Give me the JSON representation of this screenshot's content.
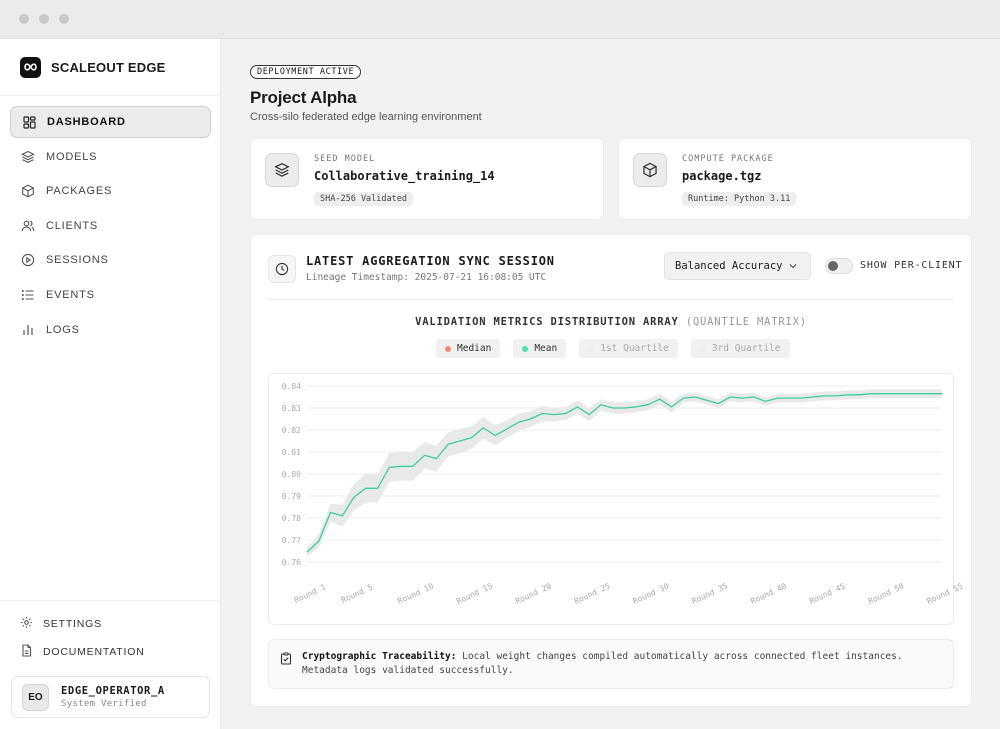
{
  "brand": {
    "name": "SCALEOUT EDGE"
  },
  "nav": [
    {
      "label": "DASHBOARD",
      "icon": "grid-icon",
      "active": true
    },
    {
      "label": "MODELS",
      "icon": "layers-icon"
    },
    {
      "label": "PACKAGES",
      "icon": "box-icon"
    },
    {
      "label": "CLIENTS",
      "icon": "users-icon"
    },
    {
      "label": "SESSIONS",
      "icon": "play-circle-icon"
    },
    {
      "label": "EVENTS",
      "icon": "list-icon"
    },
    {
      "label": "LOGS",
      "icon": "bar-chart-icon"
    }
  ],
  "utility": {
    "settings": "SETTINGS",
    "documentation": "DOCUMENTATION"
  },
  "user": {
    "initials": "EO",
    "name": "EDGE_OPERATOR_A",
    "status": "System Verified"
  },
  "page": {
    "badge": "DEPLOYMENT ACTIVE",
    "title": "Project Alpha",
    "subtitle": "Cross-silo federated edge learning environment"
  },
  "seed_model": {
    "label": "SEED MODEL",
    "value": "Collaborative_training_14",
    "tag": "SHA-256 Validated"
  },
  "compute_package": {
    "label": "COMPUTE PACKAGE",
    "value": "package.tgz",
    "tag": "Runtime: Python 3.11"
  },
  "session": {
    "title": "LATEST AGGREGATION SYNC SESSION",
    "timestamp": "Lineage Timestamp: 2025-07-21 16:08:05 UTC",
    "metric_select": "Balanced Accuracy",
    "toggle_label": "SHOW PER-CLIENT",
    "toggle_on": false
  },
  "chart_title": {
    "main": "VALIDATION METRICS DISTRIBUTION ARRAY",
    "muted": "(QUANTILE MATRIX)"
  },
  "legend": [
    {
      "label": "Median",
      "color": "#f08a7a",
      "active": true
    },
    {
      "label": "Mean",
      "color": "#4fe0b0",
      "active": true
    },
    {
      "label": "1st Quartile",
      "color": "#eeeeee",
      "active": false
    },
    {
      "label": "3rd Quartile",
      "color": "#eeeeee",
      "active": false
    }
  ],
  "chart_data": {
    "type": "line",
    "ylim": [
      0.76,
      0.84
    ],
    "y_ticks": [
      "0.76",
      "0.77",
      "0.78",
      "0.79",
      "0.80",
      "0.81",
      "0.82",
      "0.83",
      "0.84"
    ],
    "x_tick_labels": [
      "Round 1",
      "Round 5",
      "Round 10",
      "Round 15",
      "Round 20",
      "Round 25",
      "Round 30",
      "Round 35",
      "Round 40",
      "Round 45",
      "Round 50",
      "Round 55"
    ],
    "x_tick_rounds": [
      1,
      5,
      10,
      15,
      20,
      25,
      30,
      35,
      40,
      45,
      50,
      55
    ],
    "x_range": [
      1,
      55
    ],
    "grid": true,
    "series": [
      {
        "name": "Mean",
        "color": "#3ccf9a",
        "values": [
          0.7645,
          0.7695,
          0.7825,
          0.781,
          0.7895,
          0.7935,
          0.7935,
          0.803,
          0.8035,
          0.8035,
          0.8085,
          0.807,
          0.8135,
          0.815,
          0.8165,
          0.821,
          0.8175,
          0.8205,
          0.8235,
          0.825,
          0.8275,
          0.827,
          0.8275,
          0.8305,
          0.827,
          0.8315,
          0.83,
          0.83,
          0.8305,
          0.8315,
          0.834,
          0.8305,
          0.8345,
          0.835,
          0.8335,
          0.832,
          0.835,
          0.8345,
          0.835,
          0.833,
          0.8345,
          0.8345,
          0.8345,
          0.835,
          0.8355,
          0.8355,
          0.836,
          0.836,
          0.8365,
          0.8365,
          0.8365,
          0.8365,
          0.8365,
          0.8365,
          0.8365
        ]
      }
    ],
    "band_halfwidth": [
      0.002,
      0.003,
      0.004,
      0.005,
      0.006,
      0.0065,
      0.0065,
      0.0065,
      0.0065,
      0.0065,
      0.006,
      0.006,
      0.0055,
      0.0055,
      0.005,
      0.005,
      0.0045,
      0.004,
      0.004,
      0.0035,
      0.0035,
      0.003,
      0.003,
      0.003,
      0.003,
      0.0025,
      0.0025,
      0.0025,
      0.0025,
      0.0025,
      0.0025,
      0.0025,
      0.002,
      0.002,
      0.002,
      0.002,
      0.002,
      0.002,
      0.002,
      0.002,
      0.002,
      0.002,
      0.002,
      0.002,
      0.002,
      0.002,
      0.002,
      0.002,
      0.002,
      0.002,
      0.002,
      0.002,
      0.002,
      0.002,
      0.002
    ]
  },
  "trace": {
    "heading": "Cryptographic Traceability:",
    "line1": "Local weight changes compiled automatically across connected fleet instances.",
    "line2": "Metadata logs validated successfully."
  }
}
